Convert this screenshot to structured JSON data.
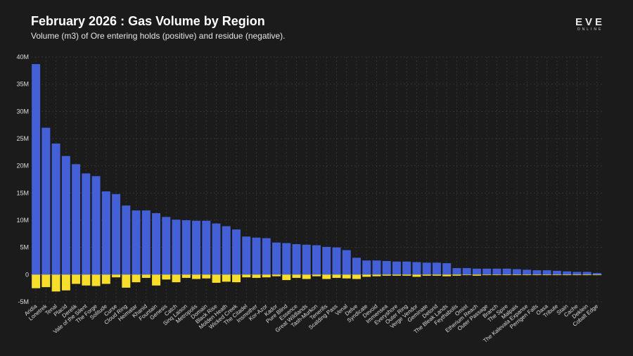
{
  "header": {
    "title": "February 2026 : Gas Volume by Region",
    "subtitle": "Volume (m3) of Ore entering holds (positive) and residue (negative).",
    "logo_main": "EVE",
    "logo_sub": "ONLINE"
  },
  "colors": {
    "positive": "#4360d6",
    "negative": "#f6de2a",
    "background": "#1b1b1b"
  },
  "chart_data": {
    "type": "bar",
    "stacked": true,
    "title": "February 2026 : Gas Volume by Region",
    "subtitle": "Volume (m3) of Ore entering holds (positive) and residue (negative).",
    "xlabel": "",
    "ylabel": "",
    "ylim": [
      -5000000,
      40000000
    ],
    "yticks": [
      -5000000,
      0,
      5000000,
      10000000,
      15000000,
      20000000,
      25000000,
      30000000,
      35000000,
      40000000
    ],
    "ytick_labels": [
      "-5M",
      "0",
      "5M",
      "10M",
      "15M",
      "20M",
      "25M",
      "30M",
      "35M",
      "40M"
    ],
    "grid": true,
    "legend": "none",
    "categories": [
      "Aridia",
      "Lonetrek",
      "Tenal",
      "Placid",
      "Derelik",
      "Vale of the Silent",
      "The Forge",
      "Solitude",
      "Curse",
      "Cloud Ring",
      "Heimatar",
      "Khanid",
      "Fountain",
      "Genesis",
      "Catch",
      "Sinq Laison",
      "Metropolis",
      "Domain",
      "Black Rise",
      "Molden Heath",
      "Wicked Creek",
      "The Citadel",
      "Insmother",
      "Kor-Azor",
      "Kador",
      "Pure Blind",
      "Essence",
      "Great Wildlands",
      "Tash-Murkon",
      "Tenerifis",
      "Scalding Pass",
      "Venal",
      "Delve",
      "Syndicate",
      "Devoid",
      "Immensea",
      "Everyshore",
      "Outer Ring",
      "Verge Vendor",
      "Geminate",
      "Detorid",
      "The Bleak Lands",
      "Feythabolis",
      "Omist",
      "Etherium Reach",
      "Outer Passage",
      "Branch",
      "The Spire",
      "Malpais",
      "The Kalevala Expanse",
      "Perrigen Falls",
      "Oasa",
      "Tribute",
      "Stain",
      "Cache",
      "Deklein",
      "Cobalt Edge"
    ],
    "series": [
      {
        "values": [
          38700000,
          27000000,
          24100000,
          21800000,
          20300000,
          18600000,
          18100000,
          15300000,
          14800000,
          12700000,
          11800000,
          11800000,
          11300000,
          10600000,
          10100000,
          10000000,
          9900000,
          9900000,
          9400000,
          8900000,
          8300000,
          7000000,
          6800000,
          6700000,
          5900000,
          5800000,
          5600000,
          5500000,
          5400000,
          5100000,
          5000000,
          4500000,
          3100000,
          2600000,
          2600000,
          2500000,
          2400000,
          2400000,
          2300000,
          2200000,
          2200000,
          2100000,
          1200000,
          1200000,
          1100000,
          1100000,
          1100000,
          1100000,
          1000000,
          900000,
          800000,
          800000,
          700000,
          600000,
          500000,
          500000,
          300000
        ]
      },
      {
        "values": [
          -2500000,
          -2300000,
          -3100000,
          -2900000,
          -1700000,
          -2000000,
          -2100000,
          -1700000,
          -500000,
          -2400000,
          -1400000,
          -600000,
          -2000000,
          -900000,
          -1400000,
          -600000,
          -800000,
          -700000,
          -1500000,
          -1300000,
          -1400000,
          -500000,
          -600000,
          -500000,
          -300000,
          -1000000,
          -600000,
          -800000,
          -300000,
          -800000,
          -600000,
          -700000,
          -800000,
          -400000,
          -300000,
          -200000,
          -200000,
          -200000,
          -400000,
          -200000,
          -200000,
          -300000,
          -200000,
          -100000,
          -200000,
          -100000,
          -100000,
          -100000,
          -100000,
          -100000,
          -100000,
          -100000,
          -100000,
          -100000,
          -100000,
          -100000,
          -100000
        ]
      }
    ]
  }
}
